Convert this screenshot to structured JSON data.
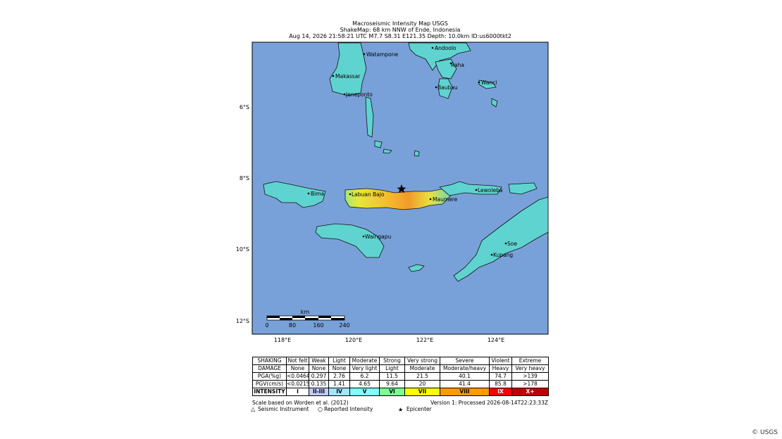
{
  "header": {
    "title": "Macroseismic Intensity Map USGS",
    "subtitle": "ShakeMap: 68 km NNW of Ende, Indonesia",
    "details": "Aug 14, 2026 21:58:21 UTC M7.7 S8.31 E121.35 Depth: 10.0km ID:us6000tkt2"
  },
  "map": {
    "lat_labels": [
      "6°S",
      "8°S",
      "10°S",
      "12°S"
    ],
    "lon_labels": [
      "118°E",
      "120°E",
      "122°E",
      "124°E"
    ],
    "cities": [
      "Watampone",
      "Andoolo",
      "Makassar",
      "Raha",
      "Baubau",
      "Wanci",
      "Jeneponto",
      "Bima",
      "Labuan Bajo",
      "Maumere",
      "Lewoleba",
      "Waingapu",
      "Soe",
      "Kupang"
    ],
    "scale_bar": {
      "unit": "km",
      "labels": [
        "0",
        "80",
        "160",
        "240"
      ]
    }
  },
  "legend_table": {
    "rows": [
      [
        "SHAKING",
        "Not felt",
        "Weak",
        "Light",
        "Moderate",
        "Strong",
        "Very strong",
        "Severe",
        "Violent",
        "Extreme"
      ],
      [
        "DAMAGE",
        "None",
        "None",
        "None",
        "Very light",
        "Light",
        "Moderate",
        "Moderate/heavy",
        "Heavy",
        "Very heavy"
      ],
      [
        "PGA(%g)",
        "<0.0464",
        "0.297",
        "2.76",
        "6.2",
        "11.5",
        "21.5",
        "40.1",
        "74.7",
        ">139"
      ],
      [
        "PGV(cm/s)",
        "<0.0215",
        "0.135",
        "1.41",
        "4.65",
        "9.64",
        "20",
        "41.4",
        "85.8",
        ">178"
      ],
      [
        "INTENSITY",
        "I",
        "II-III",
        "IV",
        "V",
        "VI",
        "VII",
        "VIII",
        "IX",
        "X+"
      ]
    ]
  },
  "footer": {
    "scale_note": "Scale based on Worden et al. (2012)",
    "version": "Version 1: Processed 2026-08-14T22:23:33Z",
    "seismic_instrument": "Seismic Instrument",
    "reported_intensity": "Reported Intensity",
    "epicenter": "Epicenter"
  },
  "credit": "© USGS"
}
